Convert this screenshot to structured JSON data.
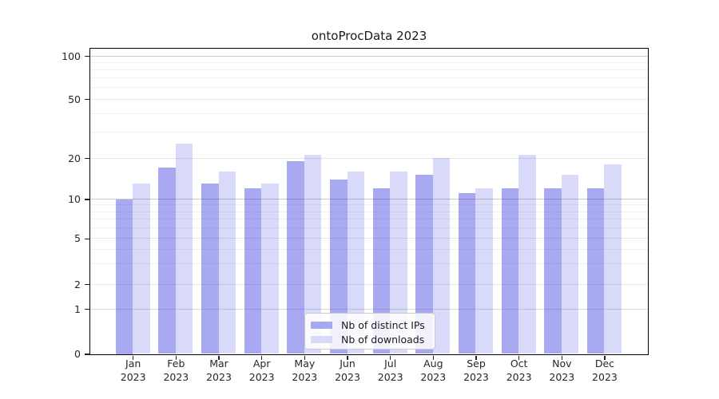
{
  "title": "ontoProcData 2023",
  "colors": {
    "ips_bar": "rgba(40,40,220,0.40)",
    "downloads_bar": "rgba(40,40,220,0.175)",
    "ips_swatch": "#a8a8f0",
    "downloads_swatch": "#d9d9f8",
    "grid_major": "#c9c9c9",
    "grid_one": "#dcdcdc",
    "grid_labeled": "#e7e7e7",
    "grid_minor": "#f0f0f0",
    "axis_line": "#000000",
    "text": "#262626"
  },
  "chart_data": {
    "type": "bar",
    "title": "ontoProcData 2023",
    "categories": [
      {
        "month": "Jan",
        "year": "2023"
      },
      {
        "month": "Feb",
        "year": "2023"
      },
      {
        "month": "Mar",
        "year": "2023"
      },
      {
        "month": "Apr",
        "year": "2023"
      },
      {
        "month": "May",
        "year": "2023"
      },
      {
        "month": "Jun",
        "year": "2023"
      },
      {
        "month": "Jul",
        "year": "2023"
      },
      {
        "month": "Aug",
        "year": "2023"
      },
      {
        "month": "Sep",
        "year": "2023"
      },
      {
        "month": "Oct",
        "year": "2023"
      },
      {
        "month": "Nov",
        "year": "2023"
      },
      {
        "month": "Dec",
        "year": "2023"
      }
    ],
    "series": [
      {
        "name": "Nb of distinct IPs",
        "values": [
          10,
          17,
          13,
          12,
          19,
          14,
          12,
          15,
          11,
          12,
          12,
          12
        ]
      },
      {
        "name": "Nb of downloads",
        "values": [
          13,
          25,
          16,
          13,
          21,
          16,
          16,
          20,
          12,
          21,
          15,
          18
        ]
      }
    ],
    "xlabel": "",
    "ylabel": "",
    "yscale": "log-with-zero",
    "yticks": [
      0,
      1,
      2,
      5,
      10,
      20,
      50,
      100
    ],
    "minor_gridlines": [
      3,
      4,
      6,
      7,
      8,
      9,
      30,
      40,
      60,
      70,
      80,
      90
    ],
    "ylim": [
      0,
      130
    ],
    "grid": "horizontal",
    "legend_position": "lower-center-inside"
  }
}
